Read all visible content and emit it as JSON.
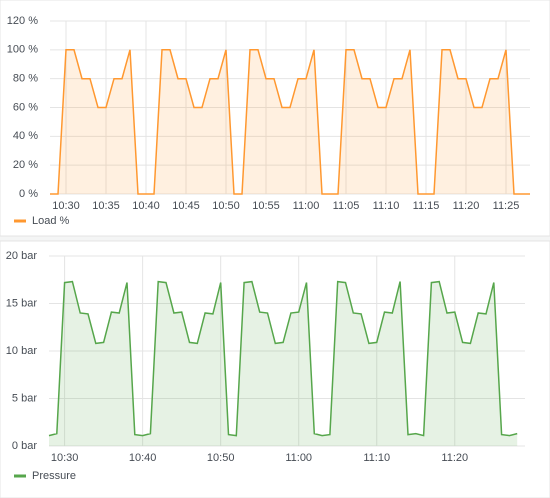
{
  "chart_data": [
    {
      "type": "line",
      "x": [
        "10:28",
        "10:29",
        "10:30",
        "10:31",
        "10:32",
        "10:33",
        "10:34",
        "10:35",
        "10:36",
        "10:37",
        "10:38",
        "10:39",
        "10:40",
        "10:41",
        "10:42",
        "10:43",
        "10:44",
        "10:45",
        "10:46",
        "10:47",
        "10:48",
        "10:49",
        "10:50",
        "10:51",
        "10:52",
        "10:53",
        "10:54",
        "10:55",
        "10:56",
        "10:57",
        "10:58",
        "10:59",
        "11:00",
        "11:01",
        "11:02",
        "11:03",
        "11:04",
        "11:05",
        "11:06",
        "11:07",
        "11:08",
        "11:09",
        "11:10",
        "11:11",
        "11:12",
        "11:13",
        "11:14",
        "11:15",
        "11:16",
        "11:17",
        "11:18",
        "11:19",
        "11:20",
        "11:21",
        "11:22",
        "11:23",
        "11:24",
        "11:25",
        "11:26",
        "11:27",
        "11:28"
      ],
      "series": [
        {
          "name": "Load %",
          "color": "#ff9830",
          "values": [
            0,
            0,
            100,
            100,
            80,
            80,
            60,
            60,
            80,
            80,
            100,
            0,
            0,
            0,
            100,
            100,
            80,
            80,
            60,
            60,
            80,
            80,
            100,
            0,
            0,
            100,
            100,
            80,
            80,
            60,
            60,
            80,
            80,
            100,
            0,
            0,
            0,
            100,
            100,
            80,
            80,
            60,
            60,
            80,
            80,
            100,
            0,
            0,
            0,
            100,
            100,
            80,
            80,
            60,
            60,
            80,
            80,
            100,
            0,
            0,
            0
          ]
        }
      ],
      "xlim": [
        "10:28",
        "11:28"
      ],
      "xticks": [
        "10:30",
        "10:35",
        "10:40",
        "10:45",
        "10:50",
        "10:55",
        "11:00",
        "11:05",
        "11:10",
        "11:15",
        "11:20",
        "11:25"
      ],
      "ylim": [
        0,
        120
      ],
      "yticks": [
        {
          "value": 0,
          "label": "0 %"
        },
        {
          "value": 20,
          "label": "20 %"
        },
        {
          "value": 40,
          "label": "40 %"
        },
        {
          "value": 60,
          "label": "60 %"
        },
        {
          "value": 80,
          "label": "80 %"
        },
        {
          "value": 100,
          "label": "100 %"
        },
        {
          "value": 120,
          "label": "120 %"
        }
      ],
      "grid": true
    },
    {
      "type": "line",
      "x": [
        "10:28",
        "10:29",
        "10:30",
        "10:31",
        "10:32",
        "10:33",
        "10:34",
        "10:35",
        "10:36",
        "10:37",
        "10:38",
        "10:39",
        "10:40",
        "10:41",
        "10:42",
        "10:43",
        "10:44",
        "10:45",
        "10:46",
        "10:47",
        "10:48",
        "10:49",
        "10:50",
        "10:51",
        "10:52",
        "10:53",
        "10:54",
        "10:55",
        "10:56",
        "10:57",
        "10:58",
        "10:59",
        "11:00",
        "11:01",
        "11:02",
        "11:03",
        "11:04",
        "11:05",
        "11:06",
        "11:07",
        "11:08",
        "11:09",
        "11:10",
        "11:11",
        "11:12",
        "11:13",
        "11:14",
        "11:15",
        "11:16",
        "11:17",
        "11:18",
        "11:19",
        "11:20",
        "11:21",
        "11:22",
        "11:23",
        "11:24",
        "11:25",
        "11:26",
        "11:27",
        "11:28"
      ],
      "series": [
        {
          "name": "Pressure",
          "color": "#56a64b",
          "values": [
            1.1,
            1.3,
            17.2,
            17.3,
            14,
            13.9,
            10.8,
            10.9,
            14.1,
            14,
            17.2,
            1.2,
            1.1,
            1.3,
            17.3,
            17.2,
            14,
            14.1,
            10.9,
            10.8,
            14,
            13.9,
            17.2,
            1.2,
            1.1,
            17.2,
            17.3,
            14.1,
            14,
            10.8,
            10.9,
            14,
            14.1,
            17.2,
            1.3,
            1.1,
            1.2,
            17.3,
            17.2,
            14,
            13.9,
            10.8,
            10.9,
            14.1,
            14,
            17.3,
            1.2,
            1.3,
            1.1,
            17.2,
            17.3,
            14,
            14.1,
            10.9,
            10.8,
            14,
            13.9,
            17.2,
            1.2,
            1.1,
            1.3
          ]
        }
      ],
      "xlim": [
        "10:28",
        "11:29"
      ],
      "xticks": [
        "10:30",
        "10:40",
        "10:50",
        "11:00",
        "11:10",
        "11:20"
      ],
      "ylim": [
        0,
        20
      ],
      "yticks": [
        {
          "value": 0,
          "label": "0 bar"
        },
        {
          "value": 5,
          "label": "5 bar"
        },
        {
          "value": 10,
          "label": "10 bar"
        },
        {
          "value": 15,
          "label": "15 bar"
        },
        {
          "value": 20,
          "label": "20 bar"
        }
      ],
      "grid": true
    }
  ]
}
